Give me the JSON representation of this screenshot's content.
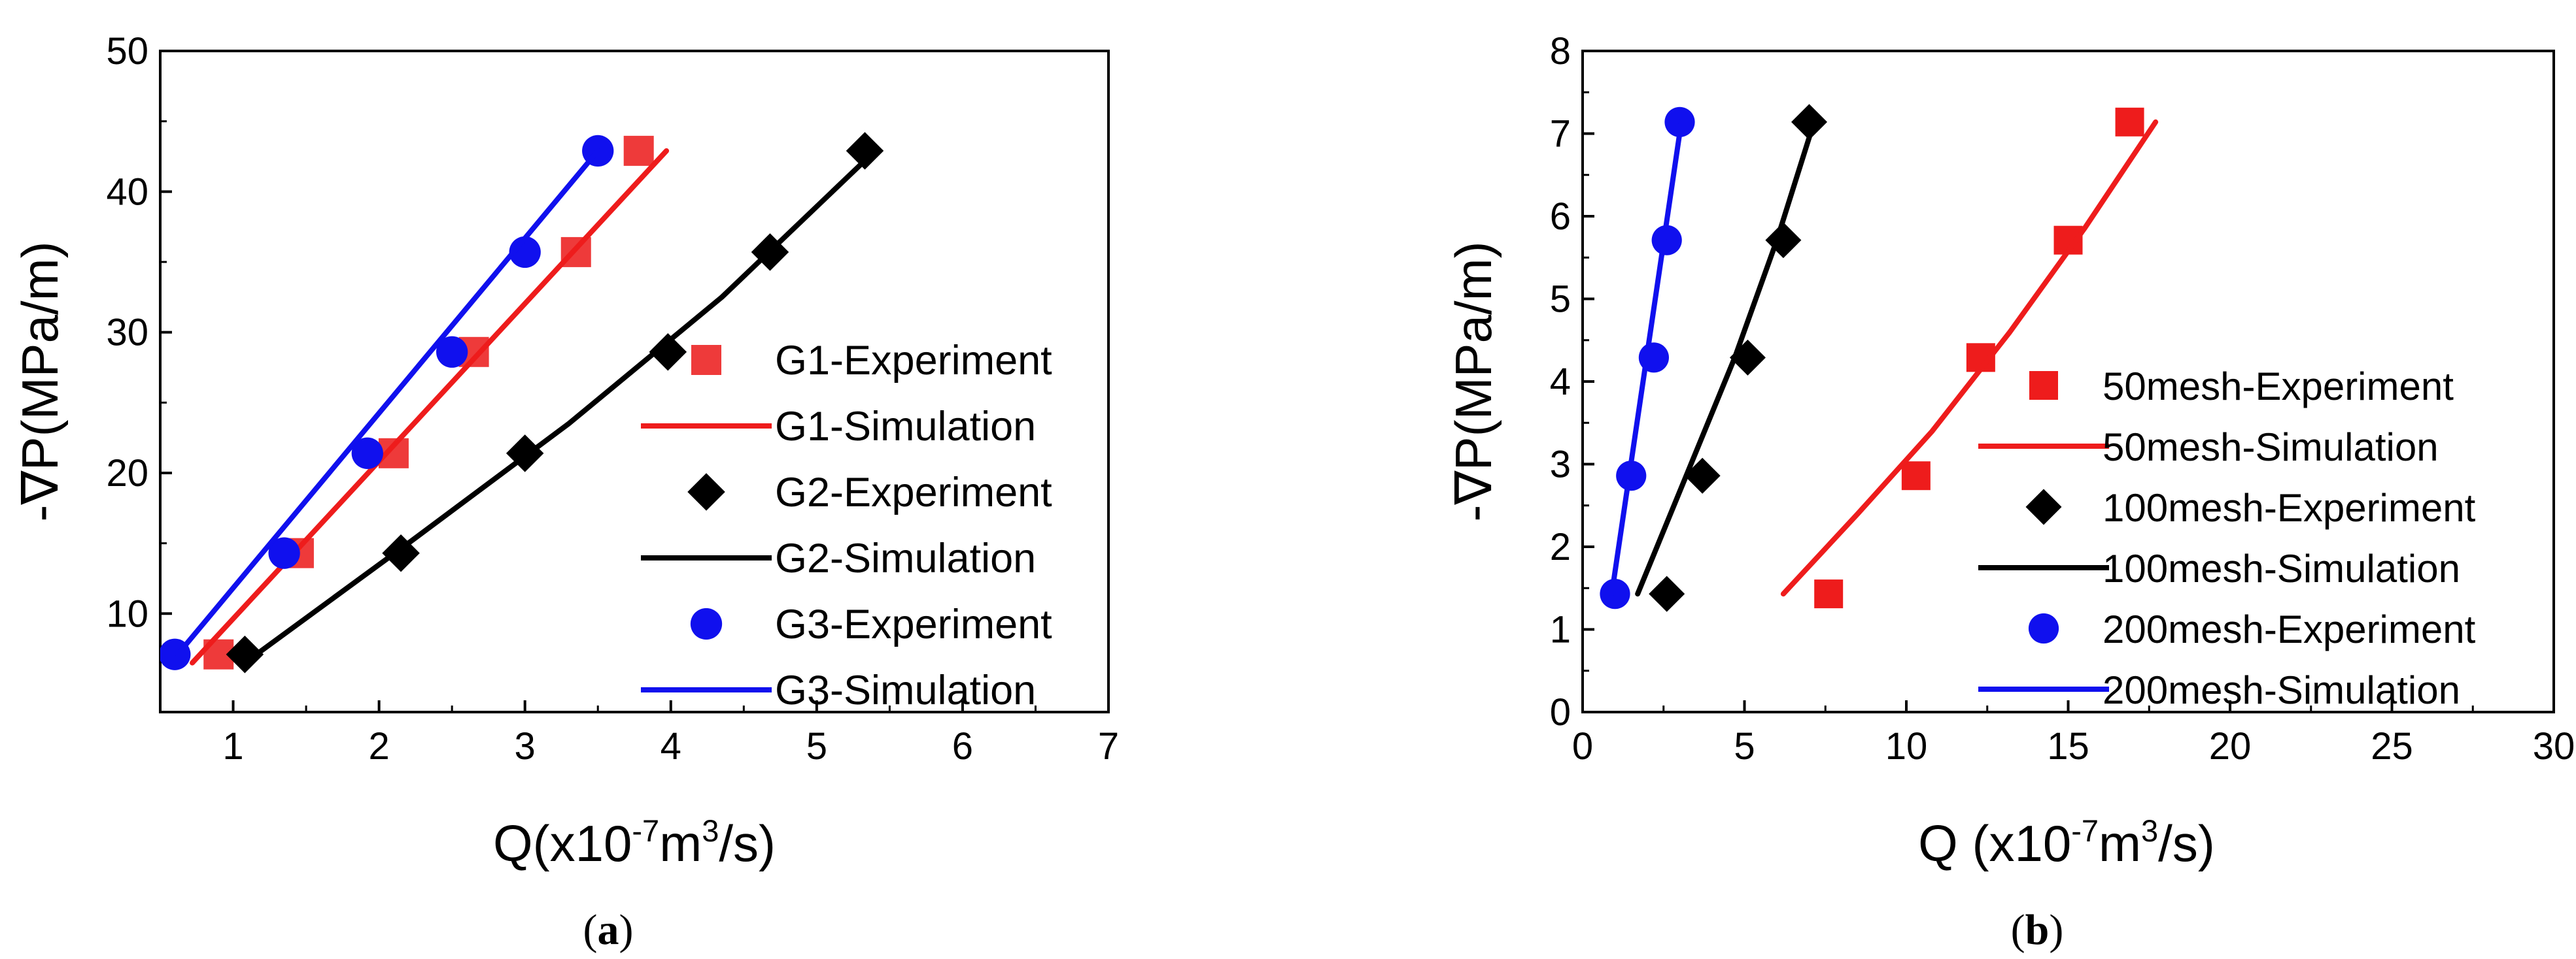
{
  "colors": {
    "red": "#ee1c1c",
    "red_marker": "#ee3a3a",
    "black": "#000000",
    "blue": "#1010ee"
  },
  "chart_data": [
    {
      "type": "scatter",
      "id": "a",
      "panel_label": "a",
      "xlabel": "Q(x10",
      "xlabel_sup1": "-7",
      "xlabel_mid": "m",
      "xlabel_sup2": "3",
      "xlabel_end": "/s)",
      "ylabel": "-∇P(MPa/m)",
      "xlim": [
        0.5,
        7
      ],
      "ylim": [
        3,
        50
      ],
      "xticks": [
        1,
        2,
        3,
        4,
        5,
        6,
        7
      ],
      "yticks": [
        10,
        20,
        30,
        40,
        50
      ],
      "legend_position": "right",
      "series": [
        {
          "name": "G1-Experiment",
          "kind": "marker",
          "marker": "square",
          "color": "#ee3a3a",
          "x": [
            0.9,
            1.45,
            2.1,
            2.65,
            3.35,
            3.78
          ],
          "y": [
            7.1,
            14.3,
            21.4,
            28.6,
            35.7,
            42.9
          ]
        },
        {
          "name": "G1-Simulation",
          "kind": "line",
          "color": "#ee1c1c",
          "x": [
            0.72,
            3.97
          ],
          "y": [
            6.5,
            42.9
          ]
        },
        {
          "name": "G2-Experiment",
          "kind": "marker",
          "marker": "diamond",
          "color": "#000000",
          "x": [
            1.08,
            2.15,
            3.0,
            3.98,
            4.68,
            5.33
          ],
          "y": [
            7.1,
            14.3,
            21.4,
            28.6,
            35.7,
            42.9
          ]
        },
        {
          "name": "G2-Simulation",
          "kind": "line",
          "color": "#000000",
          "x": [
            1.08,
            2.2,
            3.3,
            4.35,
            5.4
          ],
          "y": [
            6.5,
            15.0,
            23.5,
            32.5,
            42.9
          ]
        },
        {
          "name": "G3-Experiment",
          "kind": "marker",
          "marker": "circle",
          "color": "#1010ee",
          "x": [
            0.6,
            1.35,
            1.92,
            2.5,
            3.0,
            3.5
          ],
          "y": [
            7.1,
            14.3,
            21.4,
            28.6,
            35.7,
            42.9
          ]
        },
        {
          "name": "G3-Simulation",
          "kind": "line",
          "color": "#1010ee",
          "x": [
            0.62,
            3.5
          ],
          "y": [
            7.1,
            42.9
          ]
        }
      ]
    },
    {
      "type": "scatter",
      "id": "b",
      "panel_label": "b",
      "xlabel": "Q (x10",
      "xlabel_sup1": "-7",
      "xlabel_mid": "m",
      "xlabel_sup2": "3",
      "xlabel_end": "/s)",
      "ylabel": "-∇P(MPa/m)",
      "xlim": [
        0,
        30
      ],
      "ylim": [
        0,
        8
      ],
      "xticks": [
        0,
        5,
        10,
        15,
        20,
        25,
        30
      ],
      "yticks": [
        0,
        1,
        2,
        3,
        4,
        5,
        6,
        7,
        8
      ],
      "legend_position": "right",
      "series": [
        {
          "name": "50mesh-Experiment",
          "kind": "marker",
          "marker": "square",
          "color": "#ee1c1c",
          "x": [
            7.6,
            10.3,
            12.3,
            15.0,
            16.9
          ],
          "y": [
            1.43,
            2.86,
            4.29,
            5.71,
            7.14
          ]
        },
        {
          "name": "50mesh-Simulation",
          "kind": "line",
          "color": "#ee1c1c",
          "x": [
            6.2,
            8.5,
            10.8,
            13.2,
            15.5,
            17.7
          ],
          "y": [
            1.43,
            2.4,
            3.4,
            4.6,
            5.85,
            7.14
          ]
        },
        {
          "name": "100mesh-Experiment",
          "kind": "marker",
          "marker": "diamond",
          "color": "#000000",
          "x": [
            2.6,
            3.7,
            5.1,
            6.2,
            7.0
          ],
          "y": [
            1.43,
            2.86,
            4.29,
            5.71,
            7.14
          ]
        },
        {
          "name": "100mesh-Simulation",
          "kind": "line",
          "color": "#000000",
          "x": [
            1.7,
            3.2,
            4.7,
            6.0,
            7.15
          ],
          "y": [
            1.43,
            2.86,
            4.29,
            5.71,
            7.14
          ]
        },
        {
          "name": "200mesh-Experiment",
          "kind": "marker",
          "marker": "circle",
          "color": "#1010ee",
          "x": [
            1.0,
            1.5,
            2.2,
            2.6,
            3.0
          ],
          "y": [
            1.43,
            2.86,
            4.29,
            5.71,
            7.14
          ]
        },
        {
          "name": "200mesh-Simulation",
          "kind": "line",
          "color": "#1010ee",
          "x": [
            0.9,
            3.05
          ],
          "y": [
            1.43,
            7.14
          ]
        }
      ]
    }
  ]
}
